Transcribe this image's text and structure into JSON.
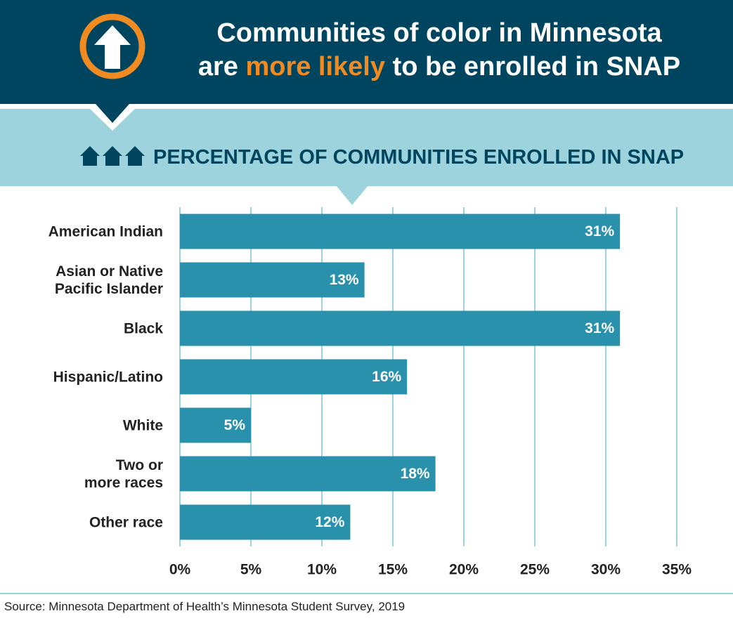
{
  "chart_data": {
    "type": "bar",
    "orientation": "horizontal",
    "title": {
      "line1": "Communities of color in Minnesota",
      "line2_start": "are",
      "highlight": "more likely",
      "line2_end": "to be enrolled in SNAP"
    },
    "highlight_color": "#f08a21",
    "subtitle": "PERCENTAGE OF COMMUNITIES ENROLLED IN SNAP",
    "categories": [
      "American Indian",
      "Asian or Native\nPacific Islander",
      "Black",
      "Hispanic/Latino",
      "White",
      "Two or\nmore races",
      "Other race"
    ],
    "values": [
      31,
      13,
      31,
      16,
      5,
      18,
      12
    ],
    "value_labels": [
      "31%",
      "13%",
      "31%",
      "16%",
      "5%",
      "18%",
      "12%"
    ],
    "color": "#2a91ad",
    "xlim": [
      0,
      35
    ],
    "xticks": [
      {
        "value": 0,
        "label": "0%"
      },
      {
        "value": 5,
        "label": "5%"
      },
      {
        "value": 10,
        "label": "10%"
      },
      {
        "value": 15,
        "label": "15%"
      },
      {
        "value": 20,
        "label": "20%"
      },
      {
        "value": 25,
        "label": "25%"
      },
      {
        "value": 30,
        "label": "30%"
      },
      {
        "value": 35,
        "label": "35%"
      }
    ],
    "grid": true,
    "source": "Source: Minnesota Department of Health’s Minnesota Student Survey, 2019"
  }
}
